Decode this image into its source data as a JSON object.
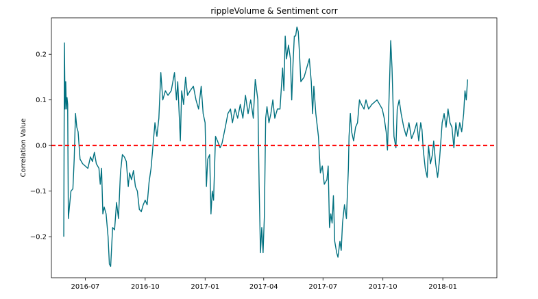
{
  "chart_data": {
    "type": "line",
    "title": "rippleVolume & Sentiment corr",
    "xlabel": "",
    "ylabel": "Correlation Value",
    "xlim": [
      "2016-05-10",
      "2018-03-25"
    ],
    "ylim": [
      -0.29,
      0.28
    ],
    "x_ticks": [
      "2016-07",
      "2016-10",
      "2017-01",
      "2017-04",
      "2017-07",
      "2017-10",
      "2018-01"
    ],
    "y_ticks": [
      -0.2,
      -0.1,
      0.0,
      0.1,
      0.2
    ],
    "y_tick_labels": [
      "−0.2",
      "−0.1",
      "0.0",
      "0.1",
      "0.2"
    ],
    "grid": false,
    "legend": "none",
    "reference_line": {
      "y": 0.0,
      "color": "#ff0000",
      "style": "dashed"
    },
    "series": [
      {
        "color": "#00707f",
        "points": [
          [
            "2016-05-29",
            -0.2
          ],
          [
            "2016-05-30",
            0.225
          ],
          [
            "2016-05-31",
            0.08
          ],
          [
            "2016-06-01",
            0.14
          ],
          [
            "2016-06-02",
            0.08
          ],
          [
            "2016-06-03",
            0.105
          ],
          [
            "2016-06-04",
            0.09
          ],
          [
            "2016-06-05",
            -0.16
          ],
          [
            "2016-06-07",
            -0.13
          ],
          [
            "2016-06-09",
            -0.1
          ],
          [
            "2016-06-12",
            -0.095
          ],
          [
            "2016-06-14",
            -0.03
          ],
          [
            "2016-06-16",
            0.07
          ],
          [
            "2016-06-18",
            0.04
          ],
          [
            "2016-06-20",
            0.03
          ],
          [
            "2016-06-23",
            -0.03
          ],
          [
            "2016-06-27",
            -0.04
          ],
          [
            "2016-07-01",
            -0.045
          ],
          [
            "2016-07-05",
            -0.05
          ],
          [
            "2016-07-09",
            -0.025
          ],
          [
            "2016-07-12",
            -0.035
          ],
          [
            "2016-07-15",
            -0.015
          ],
          [
            "2016-07-18",
            -0.04
          ],
          [
            "2016-07-22",
            -0.05
          ],
          [
            "2016-07-24",
            -0.085
          ],
          [
            "2016-07-26",
            -0.05
          ],
          [
            "2016-07-28",
            -0.15
          ],
          [
            "2016-07-30",
            -0.135
          ],
          [
            "2016-08-02",
            -0.15
          ],
          [
            "2016-08-05",
            -0.2
          ],
          [
            "2016-08-07",
            -0.26
          ],
          [
            "2016-08-09",
            -0.265
          ],
          [
            "2016-08-12",
            -0.18
          ],
          [
            "2016-08-15",
            -0.185
          ],
          [
            "2016-08-18",
            -0.125
          ],
          [
            "2016-08-21",
            -0.16
          ],
          [
            "2016-08-24",
            -0.06
          ],
          [
            "2016-08-27",
            -0.02
          ],
          [
            "2016-08-30",
            -0.025
          ],
          [
            "2016-09-02",
            -0.035
          ],
          [
            "2016-09-05",
            -0.09
          ],
          [
            "2016-09-07",
            -0.06
          ],
          [
            "2016-09-10",
            -0.075
          ],
          [
            "2016-09-13",
            -0.055
          ],
          [
            "2016-09-16",
            -0.09
          ],
          [
            "2016-09-19",
            -0.1
          ],
          [
            "2016-09-22",
            -0.14
          ],
          [
            "2016-09-25",
            -0.145
          ],
          [
            "2016-09-28",
            -0.13
          ],
          [
            "2016-10-01",
            -0.12
          ],
          [
            "2016-10-04",
            -0.13
          ],
          [
            "2016-10-07",
            -0.08
          ],
          [
            "2016-10-10",
            -0.05
          ],
          [
            "2016-10-13",
            0.0
          ],
          [
            "2016-10-16",
            0.05
          ],
          [
            "2016-10-19",
            0.02
          ],
          [
            "2016-10-22",
            0.06
          ],
          [
            "2016-10-25",
            0.16
          ],
          [
            "2016-10-28",
            0.1
          ],
          [
            "2016-11-01",
            0.12
          ],
          [
            "2016-11-05",
            0.11
          ],
          [
            "2016-11-10",
            0.12
          ],
          [
            "2016-11-15",
            0.16
          ],
          [
            "2016-11-18",
            0.1
          ],
          [
            "2016-11-20",
            0.14
          ],
          [
            "2016-11-24",
            0.01
          ],
          [
            "2016-11-26",
            0.12
          ],
          [
            "2016-11-29",
            0.09
          ],
          [
            "2016-12-02",
            0.15
          ],
          [
            "2016-12-05",
            0.11
          ],
          [
            "2016-12-09",
            0.12
          ],
          [
            "2016-12-14",
            0.13
          ],
          [
            "2016-12-18",
            0.1
          ],
          [
            "2016-12-22",
            0.08
          ],
          [
            "2016-12-26",
            0.13
          ],
          [
            "2016-12-29",
            0.07
          ],
          [
            "2017-01-01",
            0.05
          ],
          [
            "2017-01-03",
            -0.09
          ],
          [
            "2017-01-05",
            -0.03
          ],
          [
            "2017-01-08",
            -0.02
          ],
          [
            "2017-01-10",
            -0.15
          ],
          [
            "2017-01-12",
            -0.1
          ],
          [
            "2017-01-14",
            -0.12
          ],
          [
            "2017-01-17",
            0.02
          ],
          [
            "2017-01-20",
            0.01
          ],
          [
            "2017-01-24",
            -0.005
          ],
          [
            "2017-01-27",
            0.005
          ],
          [
            "2017-02-01",
            0.04
          ],
          [
            "2017-02-05",
            0.07
          ],
          [
            "2017-02-09",
            0.08
          ],
          [
            "2017-02-12",
            0.05
          ],
          [
            "2017-02-16",
            0.08
          ],
          [
            "2017-02-20",
            0.06
          ],
          [
            "2017-02-24",
            0.09
          ],
          [
            "2017-02-28",
            0.06
          ],
          [
            "2017-03-04",
            0.11
          ],
          [
            "2017-03-08",
            0.07
          ],
          [
            "2017-03-12",
            0.1
          ],
          [
            "2017-03-16",
            0.06
          ],
          [
            "2017-03-19",
            0.145
          ],
          [
            "2017-03-23",
            0.1
          ],
          [
            "2017-03-25",
            -0.09
          ],
          [
            "2017-03-27",
            -0.235
          ],
          [
            "2017-03-29",
            -0.18
          ],
          [
            "2017-03-31",
            -0.235
          ],
          [
            "2017-04-02",
            -0.155
          ],
          [
            "2017-04-04",
            0.06
          ],
          [
            "2017-04-06",
            0.085
          ],
          [
            "2017-04-09",
            0.05
          ],
          [
            "2017-04-12",
            0.07
          ],
          [
            "2017-04-15",
            0.1
          ],
          [
            "2017-04-18",
            0.06
          ],
          [
            "2017-04-22",
            0.08
          ],
          [
            "2017-04-26",
            0.08
          ],
          [
            "2017-04-30",
            0.17
          ],
          [
            "2017-05-02",
            0.12
          ],
          [
            "2017-05-04",
            0.24
          ],
          [
            "2017-05-06",
            0.19
          ],
          [
            "2017-05-09",
            0.22
          ],
          [
            "2017-05-12",
            0.19
          ],
          [
            "2017-05-14",
            0.1
          ],
          [
            "2017-05-16",
            0.18
          ],
          [
            "2017-05-18",
            0.24
          ],
          [
            "2017-05-20",
            0.24
          ],
          [
            "2017-05-22",
            0.26
          ],
          [
            "2017-05-24",
            0.25
          ],
          [
            "2017-05-26",
            0.2
          ],
          [
            "2017-05-28",
            0.14
          ],
          [
            "2017-06-02",
            0.15
          ],
          [
            "2017-06-06",
            0.17
          ],
          [
            "2017-06-10",
            0.19
          ],
          [
            "2017-06-13",
            0.14
          ],
          [
            "2017-06-15",
            0.07
          ],
          [
            "2017-06-17",
            0.13
          ],
          [
            "2017-06-20",
            0.07
          ],
          [
            "2017-06-24",
            0.02
          ],
          [
            "2017-06-27",
            -0.06
          ],
          [
            "2017-06-30",
            -0.045
          ],
          [
            "2017-07-03",
            -0.085
          ],
          [
            "2017-07-07",
            -0.075
          ],
          [
            "2017-07-09",
            -0.045
          ],
          [
            "2017-07-11",
            -0.18
          ],
          [
            "2017-07-13",
            -0.15
          ],
          [
            "2017-07-15",
            -0.17
          ],
          [
            "2017-07-17",
            -0.11
          ],
          [
            "2017-07-19",
            -0.21
          ],
          [
            "2017-07-22",
            -0.235
          ],
          [
            "2017-07-24",
            -0.245
          ],
          [
            "2017-07-27",
            -0.21
          ],
          [
            "2017-07-29",
            -0.23
          ],
          [
            "2017-07-31",
            -0.17
          ],
          [
            "2017-08-03",
            -0.13
          ],
          [
            "2017-08-06",
            -0.16
          ],
          [
            "2017-08-09",
            -0.05
          ],
          [
            "2017-08-10",
            0.02
          ],
          [
            "2017-08-12",
            0.07
          ],
          [
            "2017-08-14",
            0.03
          ],
          [
            "2017-08-17",
            0.01
          ],
          [
            "2017-08-20",
            0.04
          ],
          [
            "2017-08-23",
            0.05
          ],
          [
            "2017-08-26",
            0.1
          ],
          [
            "2017-08-29",
            0.09
          ],
          [
            "2017-09-02",
            0.08
          ],
          [
            "2017-09-05",
            0.1
          ],
          [
            "2017-09-09",
            0.08
          ],
          [
            "2017-09-14",
            0.09
          ],
          [
            "2017-09-18",
            0.095
          ],
          [
            "2017-09-22",
            0.1
          ],
          [
            "2017-09-26",
            0.09
          ],
          [
            "2017-09-30",
            0.08
          ],
          [
            "2017-10-03",
            0.06
          ],
          [
            "2017-10-06",
            0.03
          ],
          [
            "2017-10-08",
            -0.01
          ],
          [
            "2017-10-11",
            0.13
          ],
          [
            "2017-10-13",
            0.23
          ],
          [
            "2017-10-15",
            0.17
          ],
          [
            "2017-10-18",
            0.02
          ],
          [
            "2017-10-21",
            -0.005
          ],
          [
            "2017-10-23",
            0.08
          ],
          [
            "2017-10-26",
            0.1
          ],
          [
            "2017-10-29",
            0.07
          ],
          [
            "2017-11-02",
            0.04
          ],
          [
            "2017-11-06",
            0.02
          ],
          [
            "2017-11-10",
            0.05
          ],
          [
            "2017-11-14",
            0.015
          ],
          [
            "2017-11-18",
            0.03
          ],
          [
            "2017-11-22",
            0.05
          ],
          [
            "2017-11-25",
            0.01
          ],
          [
            "2017-11-28",
            0.05
          ],
          [
            "2017-11-30",
            0.035
          ],
          [
            "2017-12-02",
            -0.01
          ],
          [
            "2017-12-05",
            -0.05
          ],
          [
            "2017-12-08",
            -0.07
          ],
          [
            "2017-12-10",
            0.0
          ],
          [
            "2017-12-13",
            -0.04
          ],
          [
            "2017-12-16",
            -0.02
          ],
          [
            "2017-12-18",
            0.01
          ],
          [
            "2017-12-21",
            -0.04
          ],
          [
            "2017-12-24",
            -0.07
          ],
          [
            "2017-12-27",
            -0.03
          ],
          [
            "2017-12-31",
            0.05
          ],
          [
            "2018-01-03",
            0.07
          ],
          [
            "2018-01-06",
            0.04
          ],
          [
            "2018-01-09",
            0.08
          ],
          [
            "2018-01-12",
            0.05
          ],
          [
            "2018-01-15",
            0.04
          ],
          [
            "2018-01-18",
            -0.005
          ],
          [
            "2018-01-21",
            0.05
          ],
          [
            "2018-01-24",
            0.02
          ],
          [
            "2018-01-27",
            0.05
          ],
          [
            "2018-01-30",
            0.03
          ],
          [
            "2018-02-02",
            0.07
          ],
          [
            "2018-02-04",
            0.12
          ],
          [
            "2018-02-06",
            0.1
          ],
          [
            "2018-02-08",
            0.145
          ]
        ]
      }
    ]
  }
}
